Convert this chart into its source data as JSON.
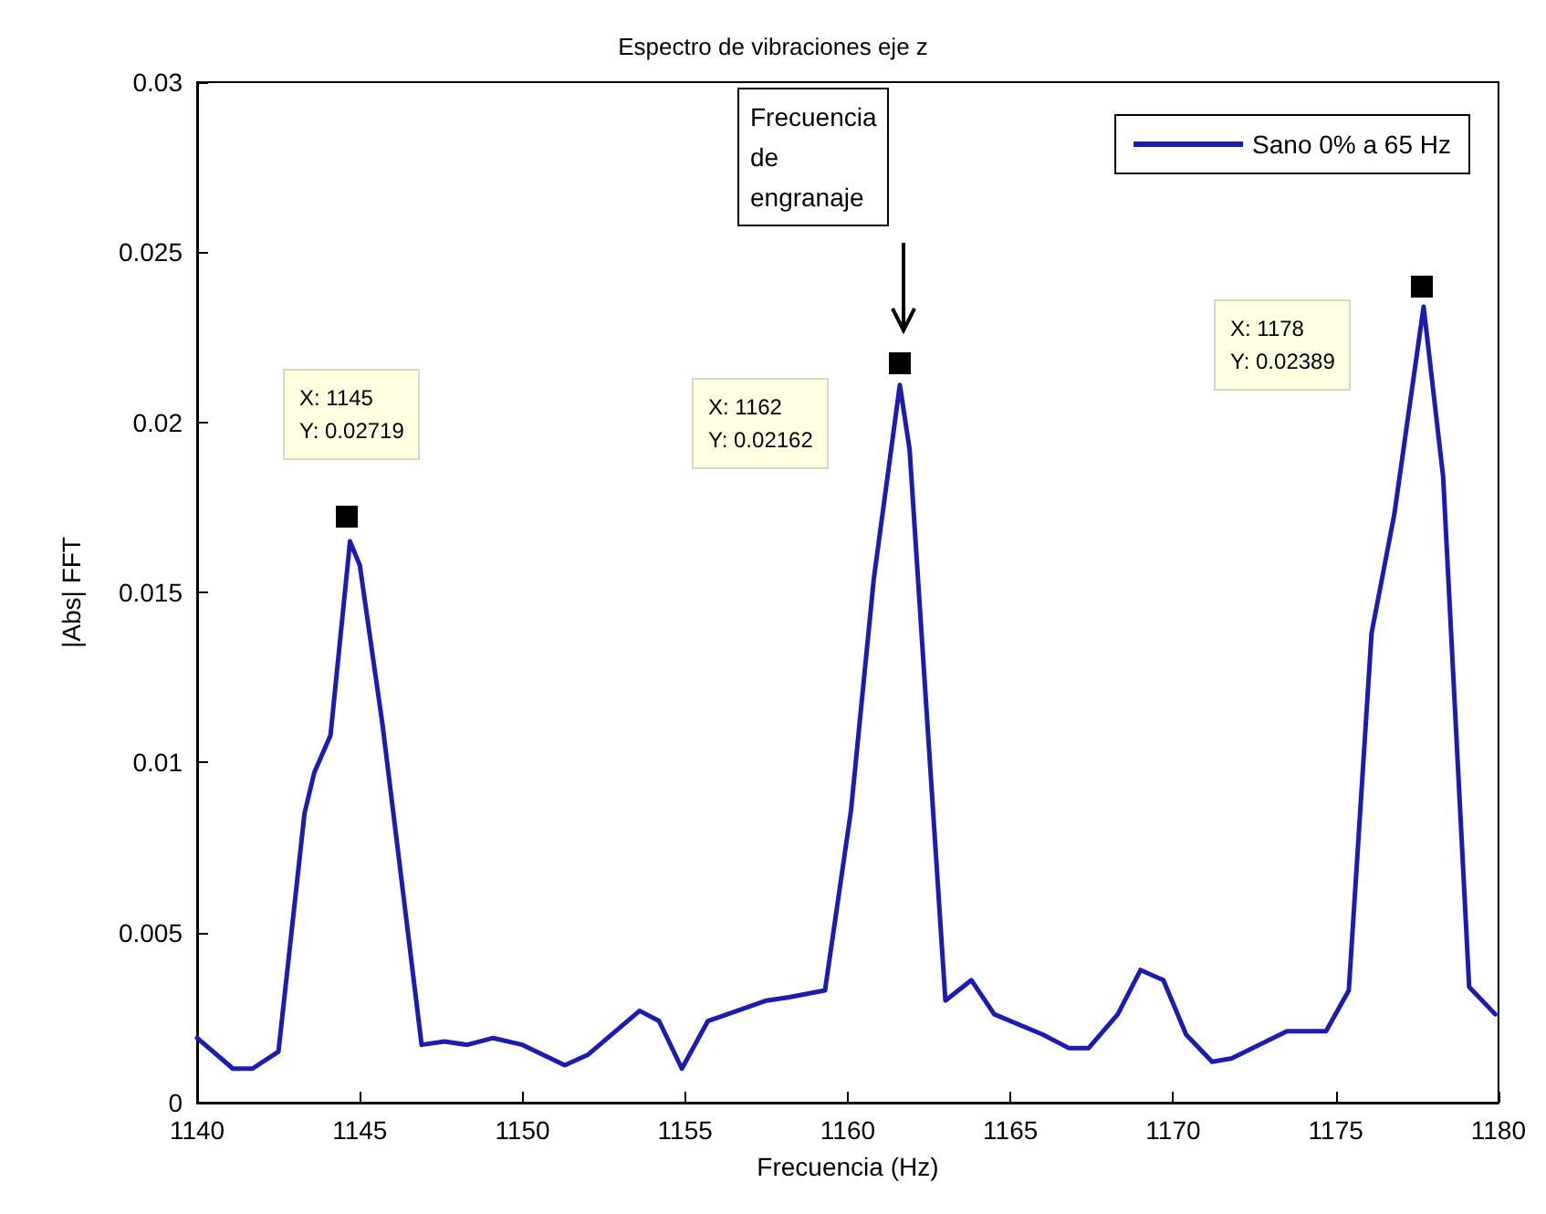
{
  "chart_data": {
    "type": "line",
    "title": "Espectro de vibraciones eje z",
    "xlabel": "Frecuencia (Hz)",
    "ylabel": "|Abs| FFT",
    "x": [
      1140,
      1141.1,
      1141.7,
      1142.5,
      1143.3,
      1143.6,
      1144.1,
      1144.7,
      1145.0,
      1145.7,
      1146.2,
      1146.9,
      1147.6,
      1148.3,
      1149.1,
      1150.0,
      1151.3,
      1152.0,
      1153.6,
      1154.2,
      1154.9,
      1155.7,
      1156.3,
      1157.5,
      1158.2,
      1159.3,
      1160.1,
      1160.8,
      1161.6,
      1161.9,
      1163.0,
      1163.8,
      1164.5,
      1166.0,
      1166.8,
      1167.4,
      1168.3,
      1169.0,
      1169.7,
      1170.4,
      1171.2,
      1171.8,
      1173.5,
      1174.7,
      1175.4,
      1176.1,
      1176.8,
      1177.7,
      1178.3,
      1179.1,
      1179.9
    ],
    "series": [
      {
        "name": "Sano 0% a 65 Hz",
        "color": "#1c1cb0",
        "values": [
          0.0019,
          0.001,
          0.001,
          0.0015,
          0.0085,
          0.0097,
          0.0108,
          0.0165,
          0.0158,
          0.0111,
          0.0072,
          0.0017,
          0.0018,
          0.0017,
          0.0019,
          0.0017,
          0.0011,
          0.0014,
          0.0027,
          0.0024,
          0.001,
          0.0024,
          0.0026,
          0.003,
          0.0031,
          0.0033,
          0.0086,
          0.0154,
          0.0211,
          0.0192,
          0.003,
          0.0036,
          0.0026,
          0.002,
          0.0016,
          0.0016,
          0.0026,
          0.0039,
          0.0036,
          0.002,
          0.0012,
          0.0013,
          0.0021,
          0.0021,
          0.0033,
          0.0138,
          0.0173,
          0.0234,
          0.0184,
          0.0034,
          0.0026
        ]
      }
    ],
    "xlim": [
      1140,
      1180
    ],
    "xticks": [
      1140,
      1145,
      1150,
      1155,
      1160,
      1165,
      1170,
      1175,
      1180
    ],
    "ylim": [
      0,
      0.03
    ],
    "yticks": [
      0,
      0.005,
      0.01,
      0.015,
      0.02,
      0.025,
      0.03
    ],
    "grid": false,
    "legend": "top right",
    "marker": "none",
    "line_style": "solid",
    "annotations": [
      "X: 1145\nY: 0.02719",
      "X: 1162\nY: 0.02162",
      "X: 1178\nY: 0.02389",
      "Frecuencia\nde\nengranaje"
    ]
  }
}
